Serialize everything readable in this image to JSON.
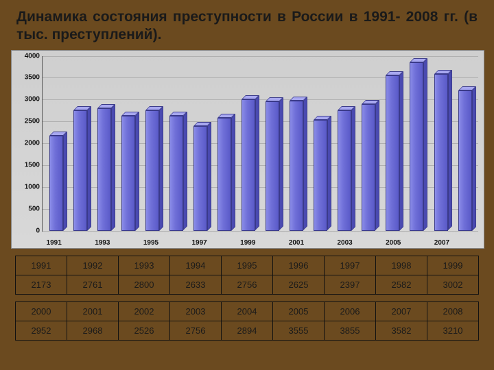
{
  "title": "Динамика состояния преступности в России в 1991- 2008 гг. (в тыс. преступлений).",
  "chart": {
    "type": "bar",
    "ylim": [
      0,
      4000
    ],
    "ytick_step": 500,
    "yticks": [
      0,
      500,
      1000,
      1500,
      2000,
      2500,
      3000,
      3500,
      4000
    ],
    "x_tick_labels": [
      "1991",
      "1993",
      "1995",
      "1997",
      "1999",
      "2001",
      "2003",
      "2005",
      "2007"
    ],
    "background_color": "#d4d4d4",
    "grid_color": "#b0b0b0",
    "bar_fill": "#7070d8",
    "bar_side": "#4a4ab0",
    "bar_top": "#a8a8f0",
    "bar_border": "#3a3a8a",
    "years": [
      "1991",
      "1992",
      "1993",
      "1994",
      "1995",
      "1996",
      "1997",
      "1998",
      "1999",
      "2000",
      "2001",
      "2002",
      "2003",
      "2004",
      "2005",
      "2006",
      "2007",
      "2008"
    ],
    "values": [
      2173,
      2761,
      2800,
      2633,
      2756,
      2625,
      2397,
      2582,
      3002,
      2952,
      2968,
      2526,
      2756,
      2894,
      3555,
      3855,
      3582,
      3210
    ]
  },
  "table1": {
    "headers": [
      "1991",
      "1992",
      "1993",
      "1994",
      "1995",
      "1996",
      "1997",
      "1998",
      "1999"
    ],
    "values": [
      "2173",
      "2761",
      "2800",
      "2633",
      "2756",
      "2625",
      "2397",
      "2582",
      "3002"
    ]
  },
  "table2": {
    "headers": [
      "2000",
      "2001",
      "2002",
      "2003",
      "2004",
      "2005",
      "2006",
      "2007",
      "2008"
    ],
    "values": [
      "2952",
      "2968",
      "2526",
      "2756",
      "2894",
      "3555",
      "3855",
      "3582",
      "3210"
    ]
  },
  "colors": {
    "slide_bg": "#6b4a1f",
    "title_color": "#1a1a1a"
  },
  "fonts": {
    "title_pt": 21,
    "axis_pt": 10,
    "table_pt": 13
  }
}
